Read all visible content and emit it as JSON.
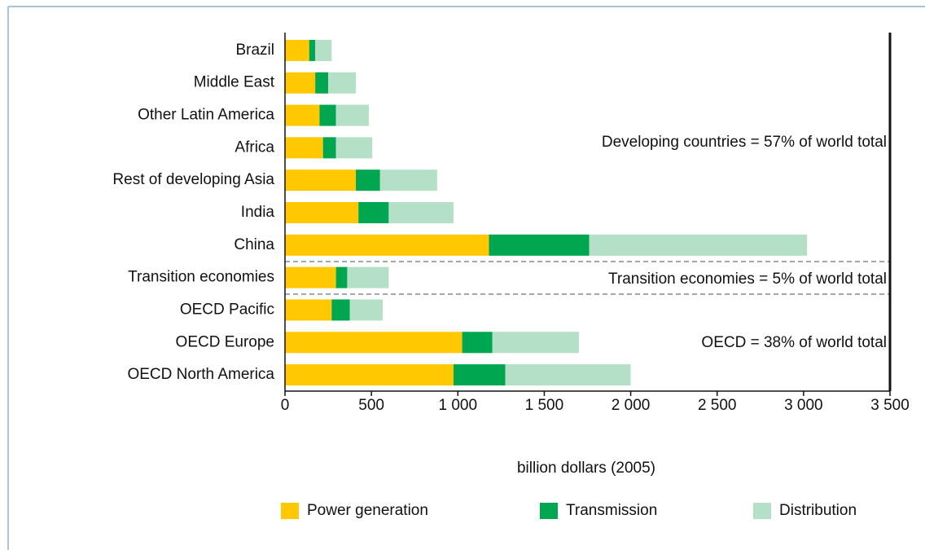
{
  "chart_data": {
    "type": "stacked_barh",
    "categories": [
      "Brazil",
      "Middle East",
      "Other Latin America",
      "Africa",
      "Rest of developing Asia",
      "India",
      "China",
      "Transition economies",
      "OECD Pacific",
      "OECD Europe",
      "OECD North America"
    ],
    "series": [
      {
        "name": "Power generation",
        "color": "#ffc800",
        "values": [
          140,
          175,
          200,
          220,
          410,
          425,
          1180,
          295,
          270,
          1025,
          975
        ]
      },
      {
        "name": "Transmission",
        "color": "#00a650",
        "values": [
          35,
          75,
          95,
          75,
          140,
          175,
          580,
          65,
          105,
          175,
          300
        ]
      },
      {
        "name": "Distribution",
        "color": "#b3e0c6",
        "values": [
          95,
          160,
          190,
          210,
          330,
          375,
          1260,
          240,
          190,
          500,
          725
        ]
      }
    ],
    "x_label": "billion dollars (2005)",
    "xlim": [
      0,
      3500
    ],
    "xticks": [
      0,
      500,
      {
        "value": 1000,
        "label": "1 000"
      },
      {
        "value": 1500,
        "label": "1 500"
      },
      {
        "value": 2000,
        "label": "2 000"
      },
      {
        "value": 2500,
        "label": "2 500"
      },
      {
        "value": 3000,
        "label": "3 000"
      },
      {
        "value": 3500,
        "label": "3 500"
      }
    ],
    "annotations": [
      "Developing countries = 57% of world total",
      "Transition economies = 5% of world total",
      "OECD = 38% of world total"
    ],
    "legend": "bottom"
  }
}
